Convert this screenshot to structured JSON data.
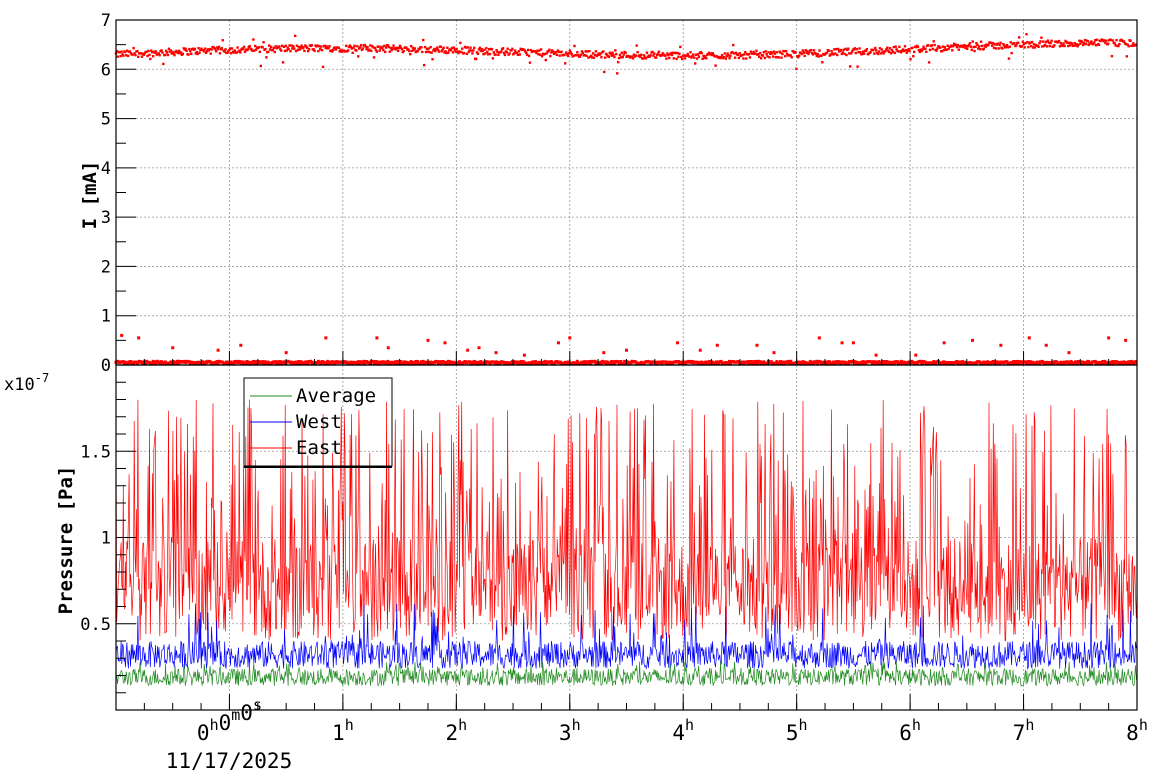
{
  "chart_data": [
    {
      "type": "scatter",
      "ylabel": "I [mA]",
      "ylim": [
        0,
        7
      ],
      "yticks": [
        "0",
        "1",
        "2",
        "3",
        "4",
        "5",
        "6",
        "7"
      ],
      "xlim_hours": [
        -1,
        8
      ],
      "grid": true,
      "series": [
        {
          "color": "#ff0000",
          "description_points": {
            "upper_band_level_mA": 6.3,
            "lower_band_level_mA": 0.05,
            "x_hours": [
              -0.95,
              -0.8,
              -0.5,
              0.1,
              -0.1,
              0.5,
              0.85,
              1.3,
              1.4,
              1.75,
              1.9,
              2.1,
              2.2,
              2.35,
              2.6,
              2.9,
              3.0,
              3.3,
              3.5,
              3.95,
              4.15,
              4.3,
              4.65,
              4.8,
              5.2,
              5.4,
              5.5,
              5.7,
              6.05,
              6.3,
              6.55,
              6.8,
              7.05,
              7.2,
              7.4,
              7.75,
              7.9
            ],
            "spike_values_mA": [
              0.6,
              0.55,
              0.35,
              0.4,
              0.3,
              0.25,
              0.55,
              0.55,
              0.35,
              0.5,
              0.45,
              0.3,
              0.35,
              0.25,
              0.2,
              0.45,
              0.55,
              0.25,
              0.3,
              0.45,
              0.3,
              0.4,
              0.4,
              0.25,
              0.55,
              0.45,
              0.45,
              0.2,
              0.2,
              0.45,
              0.5,
              0.4,
              0.55,
              0.4,
              0.25,
              0.55,
              0.5
            ]
          }
        }
      ]
    },
    {
      "type": "line",
      "ylabel": "Pressure [Pa]",
      "yscale_label": "x10",
      "yscale_exponent": "-7",
      "ylim": [
        0,
        2.0
      ],
      "yticks": [
        "0.5",
        "1",
        "1.5"
      ],
      "ytick_values": [
        0.5,
        1.0,
        1.5
      ],
      "xlim_hours": [
        -1,
        8
      ],
      "xticks": [
        {
          "hours": 0,
          "h": "0",
          "h_unit": "h",
          "m": "0",
          "m_unit": "m",
          "s": "0",
          "s_unit": "s"
        },
        {
          "hours": 1,
          "h": "1",
          "h_unit": "h"
        },
        {
          "hours": 2,
          "h": "2",
          "h_unit": "h"
        },
        {
          "hours": 3,
          "h": "3",
          "h_unit": "h"
        },
        {
          "hours": 4,
          "h": "4",
          "h_unit": "h"
        },
        {
          "hours": 5,
          "h": "5",
          "h_unit": "h"
        },
        {
          "hours": 6,
          "h": "6",
          "h_unit": "h"
        },
        {
          "hours": 7,
          "h": "7",
          "h_unit": "h"
        },
        {
          "hours": 8,
          "h": "8",
          "h_unit": "h"
        }
      ],
      "date_label": "11/17/2025",
      "grid": true,
      "legend_position": "top-left",
      "series": [
        {
          "name": "Average",
          "color": "#228b22",
          "baseline_low": 0.14,
          "baseline_high": 0.24,
          "spike_max": 0.28
        },
        {
          "name": "West",
          "color": "#0000ff",
          "baseline_low": 0.24,
          "baseline_high": 0.4,
          "spike_max": 0.62
        },
        {
          "name": "East",
          "color": "#ff0000",
          "baseline_low": 0.4,
          "baseline_high": 1.0,
          "spike_max": 1.8
        }
      ]
    }
  ]
}
